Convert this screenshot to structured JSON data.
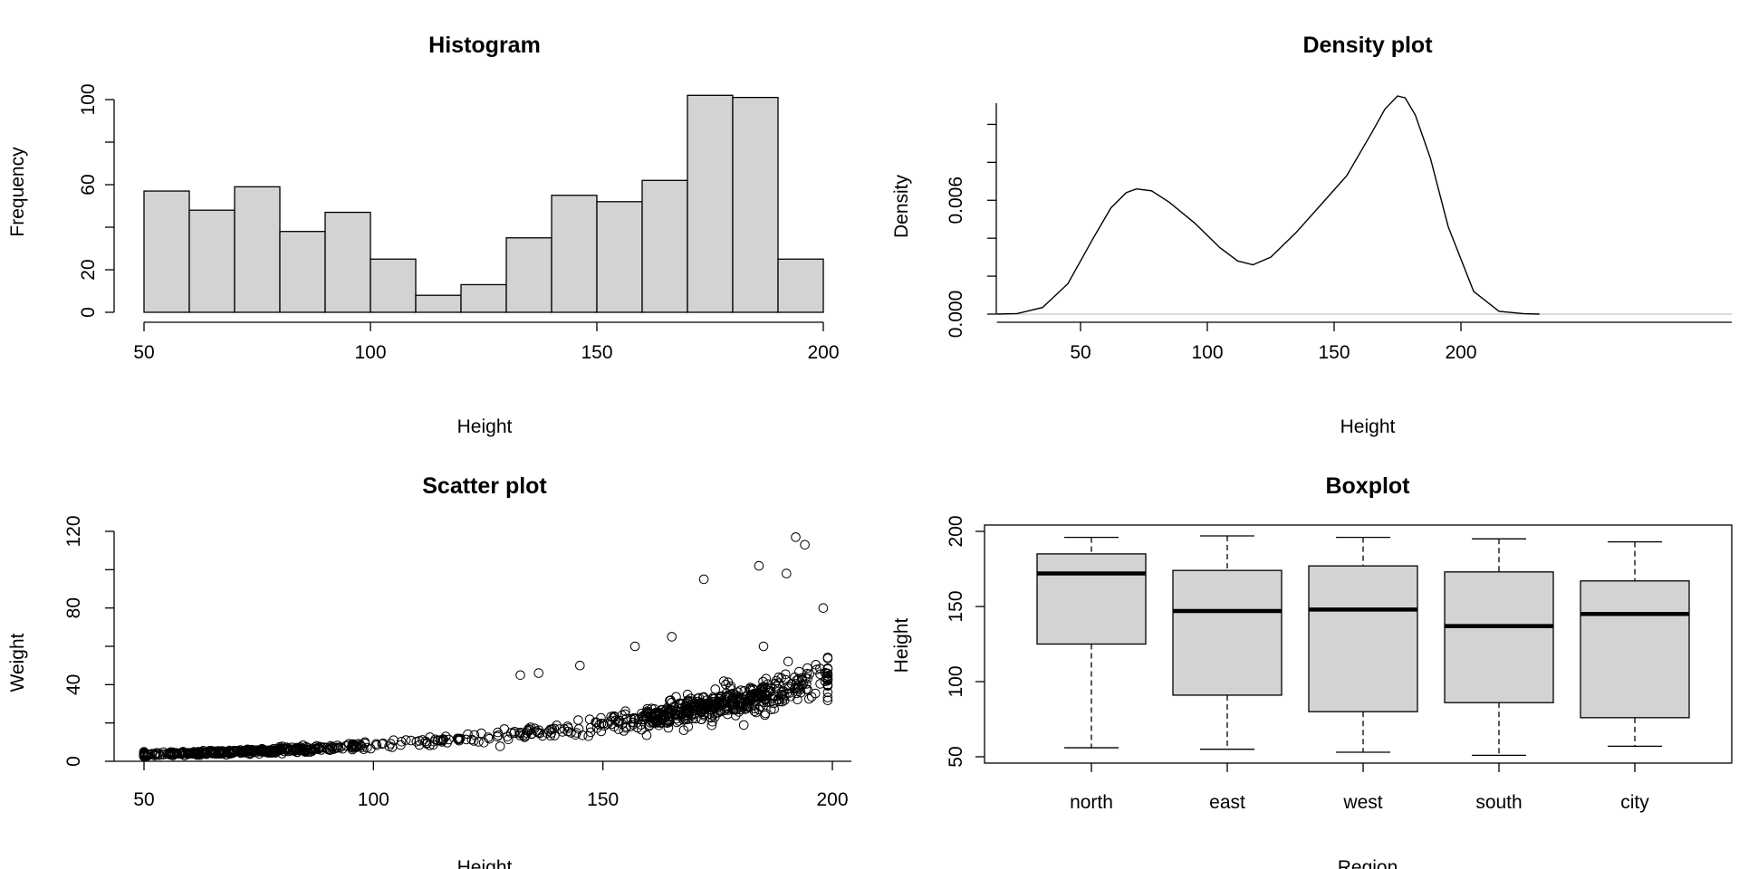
{
  "chart_data": [
    {
      "type": "bar",
      "title": "Histogram",
      "xlabel": "Height",
      "ylabel": "Frequency",
      "bin_edges": [
        50,
        60,
        70,
        80,
        90,
        100,
        110,
        120,
        130,
        140,
        150,
        160,
        170,
        180,
        190,
        200
      ],
      "values": [
        57,
        48,
        59,
        38,
        47,
        25,
        8,
        13,
        35,
        55,
        52,
        62,
        102,
        101,
        25
      ],
      "xlim": [
        50,
        200
      ],
      "ylim": [
        0,
        100
      ],
      "xticks": [
        "50",
        "100",
        "150",
        "200"
      ],
      "yticks": [
        "0",
        "20",
        "60",
        "100"
      ],
      "y_minor_ticks": [
        0,
        20,
        40,
        60,
        80,
        100
      ]
    },
    {
      "type": "line",
      "title": "Density plot",
      "xlabel": "Height",
      "ylabel": "Density",
      "x": [
        17,
        25,
        35,
        45,
        55,
        62,
        68,
        72,
        78,
        85,
        95,
        105,
        112,
        118,
        125,
        135,
        145,
        155,
        165,
        170,
        175,
        178,
        182,
        188,
        195,
        205,
        215,
        225,
        231
      ],
      "y": [
        0,
        3e-05,
        0.00035,
        0.0016,
        0.004,
        0.0056,
        0.0064,
        0.0066,
        0.0065,
        0.0059,
        0.0048,
        0.0035,
        0.0028,
        0.0026,
        0.003,
        0.0043,
        0.0058,
        0.0073,
        0.0096,
        0.0108,
        0.0115,
        0.0114,
        0.0105,
        0.0082,
        0.0046,
        0.0012,
        0.00015,
        2e-05,
        0
      ],
      "xlim": [
        17,
        231
      ],
      "ylim": [
        0,
        0.0115
      ],
      "xticks": [
        "50",
        "100",
        "150",
        "200"
      ],
      "yticks": [
        "0.000",
        "0.006"
      ],
      "y_minor_ticks": [
        0,
        0.002,
        0.004,
        0.006,
        0.008,
        0.01
      ]
    },
    {
      "type": "scatter",
      "title": "Scatter plot",
      "xlabel": "Height",
      "ylabel": "Weight",
      "n_points": 1000,
      "x_range": [
        50,
        200
      ],
      "y_range": [
        3,
        117
      ],
      "highlight_points": [
        [
          192,
          117
        ],
        [
          194,
          113
        ],
        [
          172,
          95
        ],
        [
          184,
          102
        ],
        [
          190,
          98
        ],
        [
          132,
          45
        ],
        [
          136,
          46
        ],
        [
          145,
          50
        ],
        [
          157,
          60
        ],
        [
          165,
          65
        ],
        [
          198,
          80
        ],
        [
          185,
          60
        ]
      ],
      "xlim": [
        50,
        200
      ],
      "ylim": [
        0,
        120
      ],
      "xticks": [
        "50",
        "100",
        "150",
        "200"
      ],
      "yticks": [
        "0",
        "40",
        "80",
        "120"
      ],
      "y_minor_ticks": [
        0,
        20,
        40,
        60,
        80,
        100,
        120
      ]
    },
    {
      "type": "boxplot",
      "title": "Boxplot",
      "xlabel": "Region",
      "ylabel": "Height",
      "categories": [
        "north",
        "east",
        "west",
        "south",
        "city"
      ],
      "boxes": [
        {
          "whisker_low": 56,
          "q1": 125,
          "median": 172,
          "q3": 185,
          "whisker_high": 196
        },
        {
          "whisker_low": 55,
          "q1": 91,
          "median": 147,
          "q3": 174,
          "whisker_high": 197
        },
        {
          "whisker_low": 53,
          "q1": 80,
          "median": 148,
          "q3": 177,
          "whisker_high": 196
        },
        {
          "whisker_low": 51,
          "q1": 86,
          "median": 137,
          "q3": 173,
          "whisker_high": 195
        },
        {
          "whisker_low": 57,
          "q1": 76,
          "median": 145,
          "q3": 167,
          "whisker_high": 193
        }
      ],
      "ylim": [
        45,
        205
      ],
      "yticks": [
        "50",
        "100",
        "150",
        "200"
      ]
    }
  ]
}
